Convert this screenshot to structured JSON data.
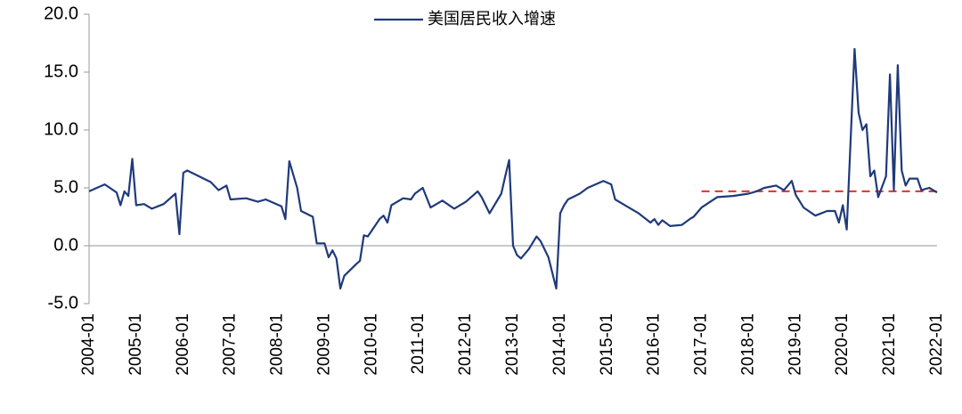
{
  "chart_data": {
    "type": "line",
    "xlim": [
      "2004-01",
      "2022-01"
    ],
    "xticks": [
      "2004-01",
      "2005-01",
      "2006-01",
      "2007-01",
      "2008-01",
      "2009-01",
      "2010-01",
      "2011-01",
      "2012-01",
      "2013-01",
      "2014-01",
      "2015-01",
      "2016-01",
      "2017-01",
      "2018-01",
      "2019-01",
      "2020-01",
      "2021-01",
      "2022-01"
    ],
    "ylim": [
      -5,
      20
    ],
    "yticks": [
      {
        "value": -5,
        "label": "-5.0"
      },
      {
        "value": 0,
        "label": "0.0"
      },
      {
        "value": 5,
        "label": "5.0"
      },
      {
        "value": 10,
        "label": "10.0"
      },
      {
        "value": 15,
        "label": "15.0"
      },
      {
        "value": 20,
        "label": "20.0"
      }
    ],
    "legend": "top",
    "x": [
      "2004-01",
      "2004-03",
      "2004-05",
      "2004-08",
      "2004-09",
      "2004-10",
      "2004-11",
      "2004-12",
      "2005-01",
      "2005-03",
      "2005-05",
      "2005-08",
      "2005-11",
      "2005-12",
      "2006-01",
      "2006-02",
      "2006-05",
      "2006-08",
      "2006-10",
      "2006-12",
      "2007-01",
      "2007-05",
      "2007-08",
      "2007-10",
      "2008-02",
      "2008-03",
      "2008-04",
      "2008-06",
      "2008-07",
      "2008-10",
      "2008-11",
      "2009-01",
      "2009-02",
      "2009-03",
      "2009-04",
      "2009-05",
      "2009-06",
      "2009-09",
      "2009-10",
      "2009-11",
      "2009-12",
      "2010-03",
      "2010-04",
      "2010-05",
      "2010-06",
      "2010-09",
      "2010-11",
      "2010-12",
      "2011-02",
      "2011-04",
      "2011-07",
      "2011-10",
      "2012-01",
      "2012-04",
      "2012-05",
      "2012-07",
      "2012-10",
      "2012-11",
      "2012-12",
      "2013-01",
      "2013-02",
      "2013-03",
      "2013-05",
      "2013-07",
      "2013-08",
      "2013-10",
      "2013-12",
      "2014-01",
      "2014-02",
      "2014-03",
      "2014-06",
      "2014-08",
      "2014-10",
      "2014-12",
      "2015-02",
      "2015-03",
      "2015-06",
      "2015-09",
      "2015-12",
      "2016-01",
      "2016-02",
      "2016-03",
      "2016-05",
      "2016-08",
      "2016-10",
      "2016-11",
      "2017-01",
      "2017-05",
      "2017-09",
      "2018-01",
      "2018-03",
      "2018-05",
      "2018-08",
      "2018-10",
      "2018-12",
      "2019-01",
      "2019-03",
      "2019-06",
      "2019-09",
      "2019-11",
      "2019-12",
      "2020-01",
      "2020-02",
      "2020-04",
      "2020-05",
      "2020-06",
      "2020-07",
      "2020-08",
      "2020-09",
      "2020-10",
      "2020-12",
      "2021-01",
      "2021-02",
      "2021-03",
      "2021-04",
      "2021-05",
      "2021-06",
      "2021-08",
      "2021-09",
      "2021-11",
      "2022-01"
    ],
    "series": [
      {
        "name": "美国居民收入增速",
        "color": "#1f3a7a",
        "values": [
          4.7,
          5.0,
          5.3,
          4.6,
          3.5,
          4.7,
          4.3,
          7.5,
          3.5,
          3.6,
          3.2,
          3.6,
          4.5,
          1.0,
          6.3,
          6.5,
          6.0,
          5.5,
          4.8,
          5.2,
          4.0,
          4.1,
          3.8,
          4.0,
          3.4,
          2.3,
          7.3,
          5.0,
          3.0,
          2.5,
          0.2,
          0.2,
          -1.0,
          -0.4,
          -1.1,
          -3.7,
          -2.6,
          -1.6,
          -1.3,
          0.9,
          0.8,
          2.3,
          2.6,
          2.0,
          3.5,
          4.1,
          4.0,
          4.5,
          5.0,
          3.3,
          3.9,
          3.2,
          3.8,
          4.7,
          4.2,
          2.8,
          4.5,
          6.0,
          7.4,
          0.0,
          -0.8,
          -1.1,
          -0.3,
          0.8,
          0.4,
          -1.0,
          -3.7,
          2.8,
          3.5,
          4.0,
          4.5,
          5.0,
          5.3,
          5.6,
          5.3,
          4.0,
          3.4,
          2.8,
          2.0,
          2.3,
          1.8,
          2.2,
          1.7,
          1.8,
          2.3,
          2.5,
          3.3,
          4.2,
          4.3,
          4.5,
          4.7,
          5.0,
          5.2,
          4.8,
          5.6,
          4.4,
          3.3,
          2.6,
          3.0,
          3.0,
          2.0,
          3.5,
          1.4,
          17.0,
          11.5,
          10.0,
          10.5,
          6.0,
          6.5,
          4.2,
          6.0,
          14.8,
          4.8,
          15.6,
          6.5,
          5.2,
          5.8,
          5.8,
          4.8,
          5.0,
          4.6
        ]
      }
    ],
    "reference_line": {
      "x": [
        "2017-01",
        "2022-01"
      ],
      "value": 4.7,
      "color": "#e0302a"
    }
  }
}
